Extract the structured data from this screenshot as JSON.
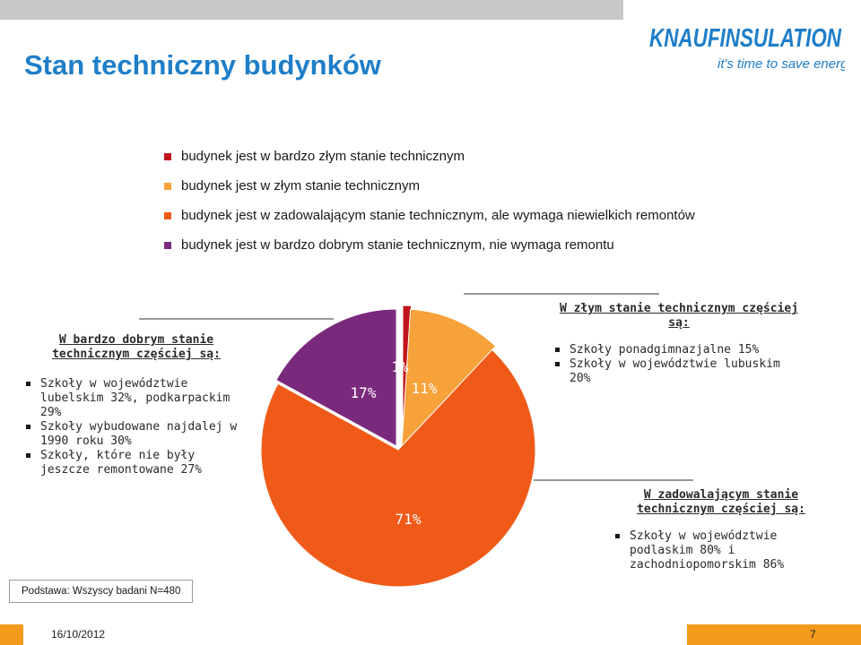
{
  "title": "Stan techniczny budynków",
  "logo": {
    "brand": "KNAUFINSULATION",
    "tagline": "it's time to save energy"
  },
  "legend": [
    {
      "label": "budynek jest w  bardzo złym stanie technicznym",
      "color": "#c0141c"
    },
    {
      "label": "budynek jest w złym stanie technicznym",
      "color": "#f7a23a"
    },
    {
      "label": "budynek jest w zadowalającym stanie technicznym, ale wymaga niewielkich remontów",
      "color": "#f05a18"
    },
    {
      "label": "budynek jest w bardzo dobrym stanie technicznym, nie wymaga remontu",
      "color": "#7a2a7c"
    }
  ],
  "chart_data": {
    "type": "pie",
    "slices": [
      {
        "category": "budynek jest w  bardzo złym stanie technicznym",
        "value": 1,
        "label": "1%",
        "color": "#c0141c"
      },
      {
        "category": "budynek jest w złym stanie technicznym",
        "value": 11,
        "label": "11%",
        "color": "#f7a23a"
      },
      {
        "category": "budynek jest w zadowalającym stanie technicznym, ale wymaga niewielkich remontów",
        "value": 71,
        "label": "71%",
        "color": "#f05a18"
      },
      {
        "category": "budynek jest w bardzo dobrym stanie technicznym, nie wymaga remontu",
        "value": 17,
        "label": "17%",
        "color": "#7a2a7c"
      }
    ]
  },
  "annotations": {
    "very_good": {
      "heading": "W bardzo dobrym stanie technicznym częściej są:",
      "items": [
        "Szkoły w województwie lubelskim 32%, podkarpackim 29%",
        "Szkoły wybudowane najdalej w 1990 roku 30%",
        "Szkoły, które nie były jeszcze remontowane 27%"
      ]
    },
    "bad": {
      "heading": "W złym stanie technicznym częściej są:",
      "items": [
        "Szkoły ponadgimnazjalne 15%",
        "Szkoły w województwie lubuskim 20%"
      ]
    },
    "satisfactory": {
      "heading": "W zadowalającym stanie technicznym częściej są:",
      "items": [
        "Szkoły w województwie podlaskim 80% i zachodniopomorskim 86%"
      ]
    }
  },
  "basis": "Podstawa: Wszyscy badani N=480",
  "footer": {
    "date": "16/10/2012",
    "page": "7"
  }
}
